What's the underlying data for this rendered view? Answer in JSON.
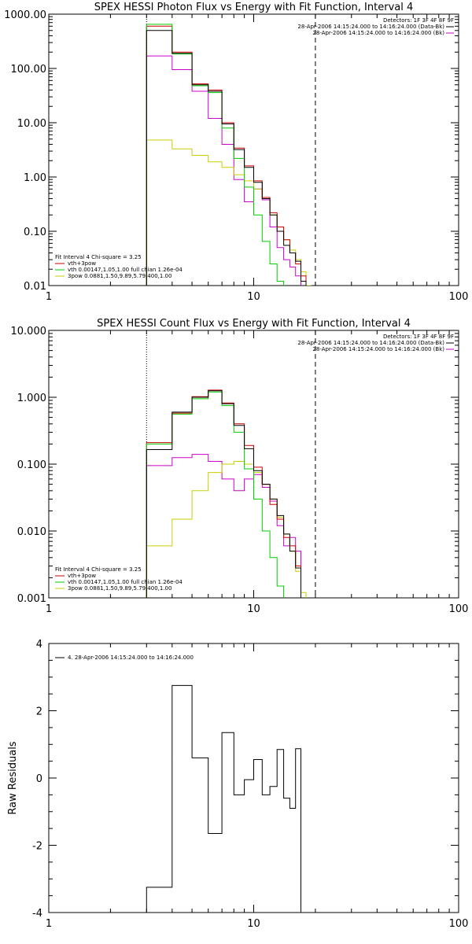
{
  "chart_data": [
    {
      "type": "line",
      "title": "SPEX HESSI Photon Flux vs Energy with Fit Function, Interval 4",
      "xlim": [
        1,
        100
      ],
      "ylim": [
        0.01,
        1000
      ],
      "xscale": "log",
      "yscale": "log",
      "x_tick_labels": [
        "1",
        "10",
        "100"
      ],
      "y_tick_labels": [
        "1000.00",
        "100.00",
        "10.00",
        "1.00",
        "0.10",
        "0.01"
      ],
      "bin_edges": [
        3,
        4,
        5,
        6,
        7,
        8,
        9,
        10,
        11,
        12,
        13,
        14,
        15,
        16,
        17,
        18,
        19,
        20,
        21,
        22
      ],
      "detector_text": "Detectors: 1F 3F 4F 8F 9F",
      "legend_right": [
        {
          "label": "28-Apr-2006 14:15:24.000 to 14:16:24.000 (Data-Bk)",
          "color": "#000000"
        },
        {
          "label": "28-Apr-2006 14:15:24.000 to 14:16:24.000 (Bk)",
          "color": "#cc00cc"
        }
      ],
      "legend_left_title": "Fit Interval 4   Chi-square = 3.25",
      "legend_left": [
        {
          "label": "vth+3pow",
          "color": "#cc0000"
        },
        {
          "label": "vth 0.00147,1.05,1.00  full chian 1.26e-04",
          "color": "#00cc00"
        },
        {
          "label": "3pow 0.0881,1.50,9.89,5.79,400,1.00",
          "color": "#cccc00"
        }
      ],
      "vlines": [
        {
          "x": 3.0,
          "style": "dotted"
        },
        {
          "x": 20.0,
          "style": "dashed"
        }
      ],
      "series": [
        {
          "name": "28-Apr-2006 14:15:24.000 to 14:16:24.000 (Data-Bk)",
          "color": "#000000",
          "values": [
            500,
            190,
            50,
            38,
            9.5,
            3.2,
            1.5,
            0.8,
            0.4,
            0.2,
            0.1,
            0.055,
            0.04,
            0.028,
            0.012,
            null,
            null,
            null,
            null
          ]
        },
        {
          "name": "vth+3pow",
          "color": "#cc0000",
          "values": [
            600,
            200,
            52,
            40,
            10,
            3.4,
            1.6,
            0.85,
            0.42,
            0.22,
            0.12,
            0.07,
            0.04,
            0.025,
            0.015,
            null,
            null,
            null,
            null
          ]
        },
        {
          "name": "vth",
          "color": "#00cc00",
          "values": [
            650,
            185,
            48,
            36,
            8.0,
            2.2,
            0.65,
            0.2,
            0.065,
            0.025,
            0.012,
            null,
            null,
            null,
            null,
            null,
            null,
            null,
            null
          ]
        },
        {
          "name": "3pow",
          "color": "#cccc00",
          "values": [
            4.8,
            3.3,
            2.5,
            1.9,
            1.5,
            1.1,
            0.85,
            0.6,
            0.42,
            0.2,
            0.12,
            0.07,
            0.045,
            0.03,
            0.018,
            0.01,
            null,
            null,
            null
          ]
        },
        {
          "name": "28-Apr-2006 14:15:24.000 to 14:16:24.000 (Bk)",
          "color": "#cc00cc",
          "values": [
            170,
            95,
            38,
            12,
            4.0,
            0.9,
            0.35,
            0.6,
            0.38,
            0.12,
            0.05,
            0.03,
            0.022,
            0.015,
            null,
            null,
            null,
            null,
            null
          ]
        }
      ]
    },
    {
      "type": "line",
      "title": "SPEX HESSI Count Flux vs Energy with Fit Function, Interval 4",
      "xlim": [
        1,
        100
      ],
      "ylim": [
        0.001,
        10
      ],
      "xscale": "log",
      "yscale": "log",
      "x_tick_labels": [
        "1",
        "10",
        "100"
      ],
      "y_tick_labels": [
        "10.000",
        "1.000",
        "0.100",
        "0.010",
        "0.001"
      ],
      "bin_edges": [
        3,
        4,
        5,
        6,
        7,
        8,
        9,
        10,
        11,
        12,
        13,
        14,
        15,
        16,
        17,
        18,
        19,
        20,
        21,
        22
      ],
      "detector_text": "Detectors: 1F 3F 4F 8F 9F",
      "legend_right": [
        {
          "label": "28-Apr-2006 14:15:24.000 to 14:16:24.000 (Data-Bk)",
          "color": "#000000"
        },
        {
          "label": "28-Apr-2006 14:15:24.000 to 14:16:24.000 (Bk)",
          "color": "#cc00cc"
        }
      ],
      "legend_left_title": "Fit Interval 4   Chi-square = 3.25",
      "legend_left": [
        {
          "label": "vth+3pow",
          "color": "#cc0000"
        },
        {
          "label": "vth 0.00147,1.05,1.00  full chian 1.26e-04",
          "color": "#00cc00"
        },
        {
          "label": "3pow 0.0881,1.50,9.89,5.79,400,1.00",
          "color": "#cccc00"
        }
      ],
      "vlines": [
        {
          "x": 3.0,
          "style": "dotted"
        },
        {
          "x": 20.0,
          "style": "dashed"
        }
      ],
      "series": [
        {
          "name": "28-Apr-2006 14:15:24.000 to 14:16:24.000 (Data-Bk)",
          "color": "#000000",
          "values": [
            0.165,
            0.6,
            1.0,
            1.25,
            0.8,
            0.38,
            0.17,
            0.08,
            0.05,
            0.03,
            0.017,
            0.009,
            0.005,
            0.0028,
            null,
            null,
            null,
            null,
            null
          ]
        },
        {
          "name": "vth+3pow",
          "color": "#cc0000",
          "values": [
            0.21,
            0.58,
            1.02,
            1.28,
            0.82,
            0.4,
            0.19,
            0.09,
            0.05,
            0.025,
            0.015,
            0.008,
            0.006,
            0.003,
            null,
            null,
            null,
            null,
            null
          ]
        },
        {
          "name": "vth",
          "color": "#00cc00",
          "values": [
            0.2,
            0.56,
            0.95,
            1.2,
            0.75,
            0.3,
            0.085,
            0.03,
            0.01,
            0.004,
            0.0015,
            null,
            null,
            null,
            null,
            null,
            null,
            null,
            null
          ]
        },
        {
          "name": "3pow",
          "color": "#cccc00",
          "values": [
            0.006,
            0.015,
            0.04,
            0.075,
            0.1,
            0.11,
            0.1,
            0.075,
            0.05,
            0.03,
            0.016,
            0.009,
            0.005,
            0.0025,
            0.0012,
            null,
            null,
            null,
            null
          ]
        },
        {
          "name": "28-Apr-2006 14:15:24.000 to 14:16:24.000 (Bk)",
          "color": "#cc00cc",
          "values": [
            0.095,
            0.125,
            0.14,
            0.11,
            0.06,
            0.04,
            0.06,
            0.07,
            0.045,
            0.028,
            0.012,
            0.006,
            0.008,
            0.005,
            null,
            null,
            null,
            null,
            null
          ]
        }
      ]
    },
    {
      "type": "line",
      "title": "",
      "ylabel": "Raw Residuals",
      "xlim": [
        1,
        100
      ],
      "ylim": [
        -4,
        4
      ],
      "xscale": "log",
      "x_tick_labels": [
        "1",
        "10",
        "100"
      ],
      "y_tick_labels": [
        "4",
        "2",
        "0",
        "-2",
        "-4"
      ],
      "legend": [
        {
          "label": "4. 28-Apr-2006 14:15:24.000 to 14:16:24.000",
          "color": "#000000"
        }
      ],
      "bin_edges": [
        3,
        4,
        5,
        6,
        7,
        8,
        9,
        10,
        11,
        12,
        13,
        14,
        15,
        16,
        17,
        18,
        19,
        20
      ],
      "series": [
        {
          "name": "4. 28-Apr-2006 14:15:24.000 to 14:16:24.000",
          "color": "#000000",
          "values": [
            -3.25,
            2.75,
            0.6,
            -1.65,
            1.35,
            -0.5,
            -0.05,
            0.55,
            -0.5,
            -0.25,
            0.85,
            -0.6,
            -0.9,
            0.87,
            -4.0
          ]
        }
      ]
    }
  ]
}
